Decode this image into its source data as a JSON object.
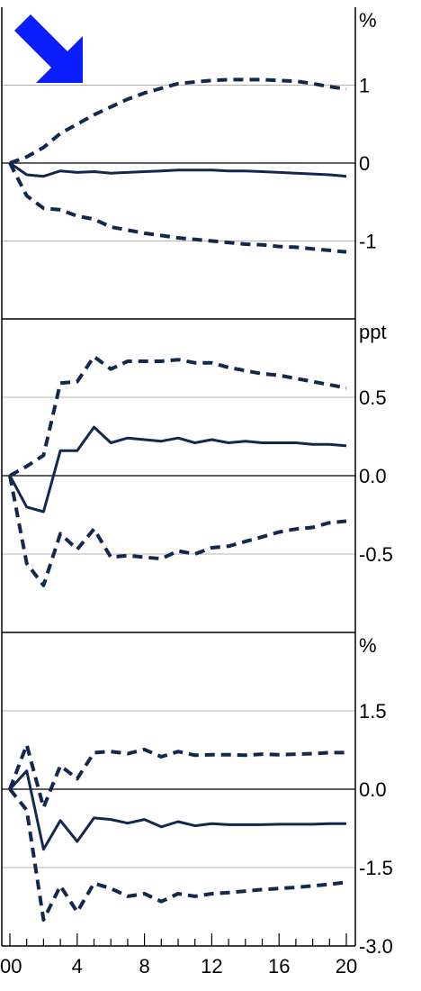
{
  "chart_data": [
    {
      "type": "line",
      "unit": "%",
      "ylim": [
        -2,
        2
      ],
      "yticks": [
        "1",
        "0",
        "-1"
      ],
      "ytick_values": [
        1,
        0,
        -1
      ],
      "x": [
        0,
        1,
        2,
        3,
        4,
        5,
        6,
        7,
        8,
        9,
        10,
        11,
        12,
        13,
        14,
        15,
        16,
        17,
        18,
        19,
        20
      ],
      "series": [
        {
          "style": "solid",
          "values": [
            0,
            -0.15,
            -0.17,
            -0.1,
            -0.12,
            -0.11,
            -0.13,
            -0.12,
            -0.11,
            -0.1,
            -0.09,
            -0.09,
            -0.09,
            -0.1,
            -0.1,
            -0.11,
            -0.12,
            -0.13,
            -0.14,
            -0.15,
            -0.17
          ]
        },
        {
          "style": "dashed",
          "values": [
            0,
            0.08,
            0.2,
            0.38,
            0.5,
            0.62,
            0.72,
            0.82,
            0.9,
            0.96,
            1.02,
            1.04,
            1.06,
            1.07,
            1.07,
            1.07,
            1.06,
            1.05,
            1.02,
            0.98,
            0.95
          ]
        },
        {
          "style": "dashed",
          "values": [
            0,
            -0.42,
            -0.58,
            -0.6,
            -0.68,
            -0.72,
            -0.82,
            -0.86,
            -0.9,
            -0.93,
            -0.96,
            -0.98,
            -1.0,
            -1.02,
            -1.04,
            -1.05,
            -1.07,
            -1.08,
            -1.1,
            -1.12,
            -1.14
          ]
        }
      ]
    },
    {
      "type": "line",
      "unit": "ppt",
      "ylim": [
        -1,
        1
      ],
      "yticks": [
        "0.5",
        "0.0",
        "-0.5"
      ],
      "ytick_values": [
        0.5,
        0,
        -0.5
      ],
      "x": [
        0,
        1,
        2,
        3,
        4,
        5,
        6,
        7,
        8,
        9,
        10,
        11,
        12,
        13,
        14,
        15,
        16,
        17,
        18,
        19,
        20
      ],
      "series": [
        {
          "style": "solid",
          "values": [
            0,
            -0.2,
            -0.23,
            0.16,
            0.16,
            0.31,
            0.21,
            0.24,
            0.23,
            0.22,
            0.24,
            0.21,
            0.23,
            0.21,
            0.22,
            0.21,
            0.21,
            0.21,
            0.2,
            0.2,
            0.19
          ]
        },
        {
          "style": "dashed",
          "values": [
            0,
            0.06,
            0.13,
            0.59,
            0.6,
            0.76,
            0.68,
            0.73,
            0.73,
            0.73,
            0.74,
            0.72,
            0.72,
            0.69,
            0.67,
            0.65,
            0.64,
            0.62,
            0.6,
            0.58,
            0.56
          ]
        },
        {
          "style": "dashed",
          "values": [
            0,
            -0.56,
            -0.7,
            -0.37,
            -0.47,
            -0.34,
            -0.52,
            -0.51,
            -0.52,
            -0.53,
            -0.48,
            -0.5,
            -0.46,
            -0.45,
            -0.42,
            -0.39,
            -0.36,
            -0.34,
            -0.33,
            -0.3,
            -0.29
          ]
        }
      ]
    },
    {
      "type": "line",
      "unit": "%",
      "ylim": [
        -3,
        3
      ],
      "yticks": [
        "1.5",
        "0.0",
        "-1.5",
        "-3.0"
      ],
      "ytick_values": [
        1.5,
        0,
        -1.5,
        -3
      ],
      "x": [
        0,
        1,
        2,
        3,
        4,
        5,
        6,
        7,
        8,
        9,
        10,
        11,
        12,
        13,
        14,
        15,
        16,
        17,
        18,
        19,
        20
      ],
      "series": [
        {
          "style": "solid",
          "values": [
            0,
            0.35,
            -1.15,
            -0.6,
            -1.0,
            -0.55,
            -0.58,
            -0.65,
            -0.58,
            -0.72,
            -0.62,
            -0.7,
            -0.66,
            -0.68,
            -0.68,
            -0.68,
            -0.67,
            -0.67,
            -0.67,
            -0.66,
            -0.66
          ]
        },
        {
          "style": "dashed",
          "values": [
            0,
            0.85,
            -0.35,
            0.45,
            0.2,
            0.7,
            0.72,
            0.68,
            0.76,
            0.62,
            0.72,
            0.65,
            0.66,
            0.66,
            0.65,
            0.67,
            0.66,
            0.67,
            0.68,
            0.7,
            0.7
          ]
        },
        {
          "style": "dashed",
          "values": [
            0,
            -0.4,
            -2.5,
            -1.85,
            -2.35,
            -1.8,
            -1.9,
            -2.05,
            -2.0,
            -2.15,
            -2.0,
            -2.05,
            -2.0,
            -1.98,
            -1.95,
            -1.92,
            -1.9,
            -1.88,
            -1.85,
            -1.82,
            -1.78
          ]
        }
      ]
    }
  ],
  "x_axis": {
    "xlim": [
      0,
      20
    ],
    "ticks": [
      "00",
      "4",
      "8",
      "12",
      "16",
      "20"
    ],
    "tick_values": [
      0,
      4,
      8,
      12,
      16,
      20
    ]
  },
  "annotations": {
    "arrow_color": "#0a1eff",
    "arrow_icon": "arrow-down-right-icon"
  },
  "colors": {
    "line": "#13284f",
    "grid": "#b4b4b4",
    "frame": "#000000"
  }
}
